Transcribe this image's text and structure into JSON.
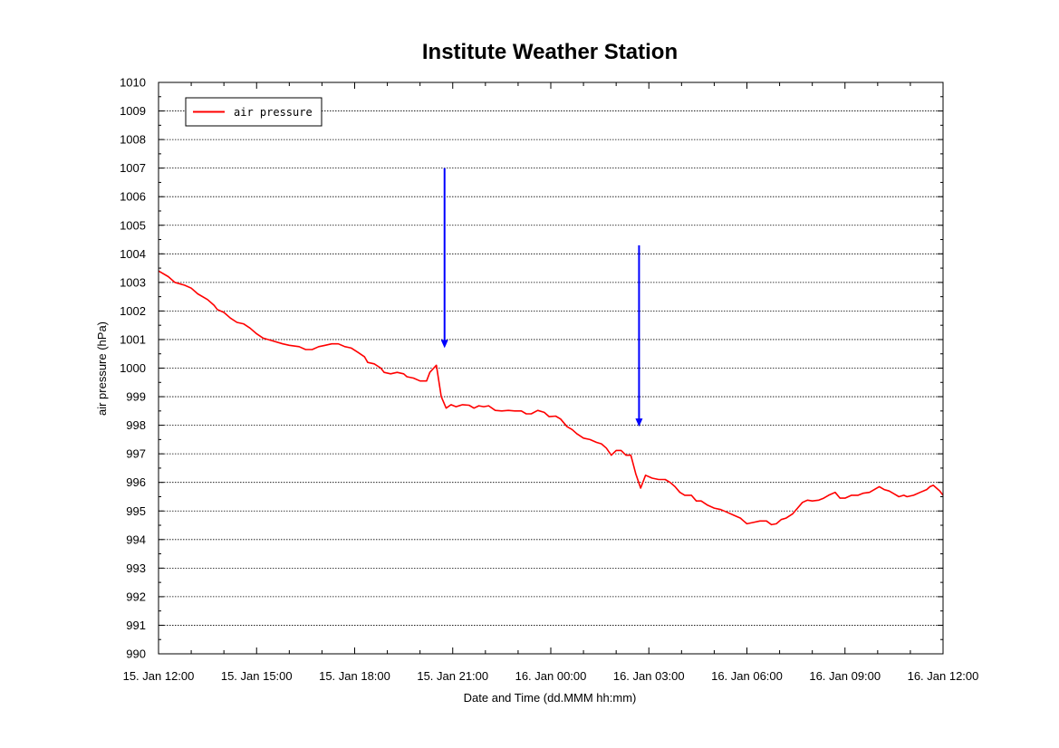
{
  "chart_data": {
    "type": "line",
    "title": "Institute Weather Station",
    "xlabel": "Date and Time (dd.MMM hh:mm)",
    "ylabel": "air pressure (hPa)",
    "ylim": [
      990,
      1010
    ],
    "yticks": [
      990,
      991,
      992,
      993,
      994,
      995,
      996,
      997,
      998,
      999,
      1000,
      1001,
      1002,
      1003,
      1004,
      1005,
      1006,
      1007,
      1008,
      1009,
      1010
    ],
    "xlim_hours": [
      0,
      24
    ],
    "xticks": [
      {
        "h": 0,
        "label": "15. Jan 12:00"
      },
      {
        "h": 3,
        "label": "15. Jan 15:00"
      },
      {
        "h": 6,
        "label": "15. Jan 18:00"
      },
      {
        "h": 9,
        "label": "15. Jan 21:00"
      },
      {
        "h": 12,
        "label": "16. Jan 00:00"
      },
      {
        "h": 15,
        "label": "16. Jan 03:00"
      },
      {
        "h": 18,
        "label": "16. Jan 06:00"
      },
      {
        "h": 21,
        "label": "16. Jan 09:00"
      },
      {
        "h": 24,
        "label": "16. Jan 12:00"
      }
    ],
    "grid": "horizontal dotted",
    "legend_position": "top-left",
    "series": [
      {
        "name": "air pressure",
        "color": "#ff0000",
        "points": [
          [
            0,
            1003.4
          ],
          [
            0.3,
            1003.2
          ],
          [
            0.5,
            1003.0
          ],
          [
            0.8,
            1002.9
          ],
          [
            1.0,
            1002.8
          ],
          [
            1.2,
            1002.6
          ],
          [
            1.5,
            1002.4
          ],
          [
            1.7,
            1002.2
          ],
          [
            1.8,
            1002.05
          ],
          [
            2.0,
            1001.95
          ],
          [
            2.2,
            1001.75
          ],
          [
            2.4,
            1001.6
          ],
          [
            2.6,
            1001.55
          ],
          [
            2.8,
            1001.4
          ],
          [
            3.0,
            1001.2
          ],
          [
            3.2,
            1001.05
          ],
          [
            3.5,
            1000.95
          ],
          [
            3.8,
            1000.85
          ],
          [
            4.0,
            1000.8
          ],
          [
            4.3,
            1000.75
          ],
          [
            4.5,
            1000.65
          ],
          [
            4.7,
            1000.65
          ],
          [
            4.9,
            1000.75
          ],
          [
            5.1,
            1000.8
          ],
          [
            5.3,
            1000.85
          ],
          [
            5.5,
            1000.85
          ],
          [
            5.7,
            1000.75
          ],
          [
            5.9,
            1000.7
          ],
          [
            6.1,
            1000.55
          ],
          [
            6.3,
            1000.4
          ],
          [
            6.4,
            1000.2
          ],
          [
            6.6,
            1000.15
          ],
          [
            6.8,
            1000.0
          ],
          [
            6.9,
            999.85
          ],
          [
            7.1,
            999.8
          ],
          [
            7.3,
            999.85
          ],
          [
            7.5,
            999.8
          ],
          [
            7.6,
            999.7
          ],
          [
            7.8,
            999.65
          ],
          [
            8.0,
            999.55
          ],
          [
            8.2,
            999.55
          ],
          [
            8.3,
            999.85
          ],
          [
            8.5,
            1000.1
          ],
          [
            8.65,
            999.0
          ],
          [
            8.8,
            998.6
          ],
          [
            8.95,
            998.72
          ],
          [
            9.1,
            998.65
          ],
          [
            9.3,
            998.72
          ],
          [
            9.5,
            998.7
          ],
          [
            9.65,
            998.6
          ],
          [
            9.8,
            998.68
          ],
          [
            9.95,
            998.65
          ],
          [
            10.1,
            998.68
          ],
          [
            10.3,
            998.52
          ],
          [
            10.5,
            998.5
          ],
          [
            10.7,
            998.52
          ],
          [
            10.9,
            998.5
          ],
          [
            11.1,
            998.5
          ],
          [
            11.25,
            998.4
          ],
          [
            11.4,
            998.4
          ],
          [
            11.6,
            998.52
          ],
          [
            11.8,
            998.45
          ],
          [
            11.95,
            998.3
          ],
          [
            12.15,
            998.32
          ],
          [
            12.3,
            998.22
          ],
          [
            12.5,
            997.95
          ],
          [
            12.65,
            997.85
          ],
          [
            12.8,
            997.7
          ],
          [
            13.0,
            997.55
          ],
          [
            13.2,
            997.5
          ],
          [
            13.4,
            997.4
          ],
          [
            13.55,
            997.35
          ],
          [
            13.7,
            997.2
          ],
          [
            13.85,
            996.95
          ],
          [
            14.0,
            997.12
          ],
          [
            14.15,
            997.12
          ],
          [
            14.3,
            996.95
          ],
          [
            14.45,
            996.95
          ],
          [
            14.6,
            996.3
          ],
          [
            14.75,
            995.8
          ],
          [
            14.9,
            996.25
          ],
          [
            15.1,
            996.15
          ],
          [
            15.3,
            996.1
          ],
          [
            15.5,
            996.1
          ],
          [
            15.65,
            996.0
          ],
          [
            15.8,
            995.85
          ],
          [
            15.95,
            995.65
          ],
          [
            16.1,
            995.55
          ],
          [
            16.3,
            995.55
          ],
          [
            16.45,
            995.35
          ],
          [
            16.6,
            995.35
          ],
          [
            16.8,
            995.2
          ],
          [
            17.0,
            995.1
          ],
          [
            17.2,
            995.05
          ],
          [
            17.4,
            994.95
          ],
          [
            17.6,
            994.85
          ],
          [
            17.8,
            994.75
          ],
          [
            17.9,
            994.65
          ],
          [
            18.0,
            994.55
          ],
          [
            18.2,
            994.6
          ],
          [
            18.4,
            994.65
          ],
          [
            18.6,
            994.65
          ],
          [
            18.75,
            994.52
          ],
          [
            18.9,
            994.55
          ],
          [
            19.05,
            994.7
          ],
          [
            19.2,
            994.75
          ],
          [
            19.4,
            994.9
          ],
          [
            19.55,
            995.1
          ],
          [
            19.7,
            995.3
          ],
          [
            19.85,
            995.38
          ],
          [
            20.0,
            995.35
          ],
          [
            20.2,
            995.38
          ],
          [
            20.35,
            995.45
          ],
          [
            20.5,
            995.55
          ],
          [
            20.7,
            995.65
          ],
          [
            20.85,
            995.45
          ],
          [
            21.0,
            995.45
          ],
          [
            21.2,
            995.55
          ],
          [
            21.4,
            995.55
          ],
          [
            21.55,
            995.62
          ],
          [
            21.75,
            995.65
          ],
          [
            21.9,
            995.75
          ],
          [
            22.05,
            995.85
          ],
          [
            22.2,
            995.75
          ],
          [
            22.35,
            995.7
          ],
          [
            22.5,
            995.6
          ],
          [
            22.65,
            995.5
          ],
          [
            22.8,
            995.55
          ],
          [
            22.9,
            995.5
          ],
          [
            23.1,
            995.55
          ],
          [
            23.3,
            995.65
          ],
          [
            23.5,
            995.75
          ],
          [
            23.6,
            995.85
          ],
          [
            23.7,
            995.9
          ],
          [
            23.8,
            995.8
          ],
          [
            23.9,
            995.7
          ],
          [
            24.0,
            995.55
          ]
        ]
      }
    ],
    "annotations": [
      {
        "type": "arrow",
        "color": "#0000ff",
        "x_hours": 8.75,
        "y_from": 1007.0,
        "y_to": 1000.7
      },
      {
        "type": "arrow",
        "color": "#0000ff",
        "x_hours": 14.7,
        "y_from": 1004.3,
        "y_to": 997.95
      }
    ]
  }
}
